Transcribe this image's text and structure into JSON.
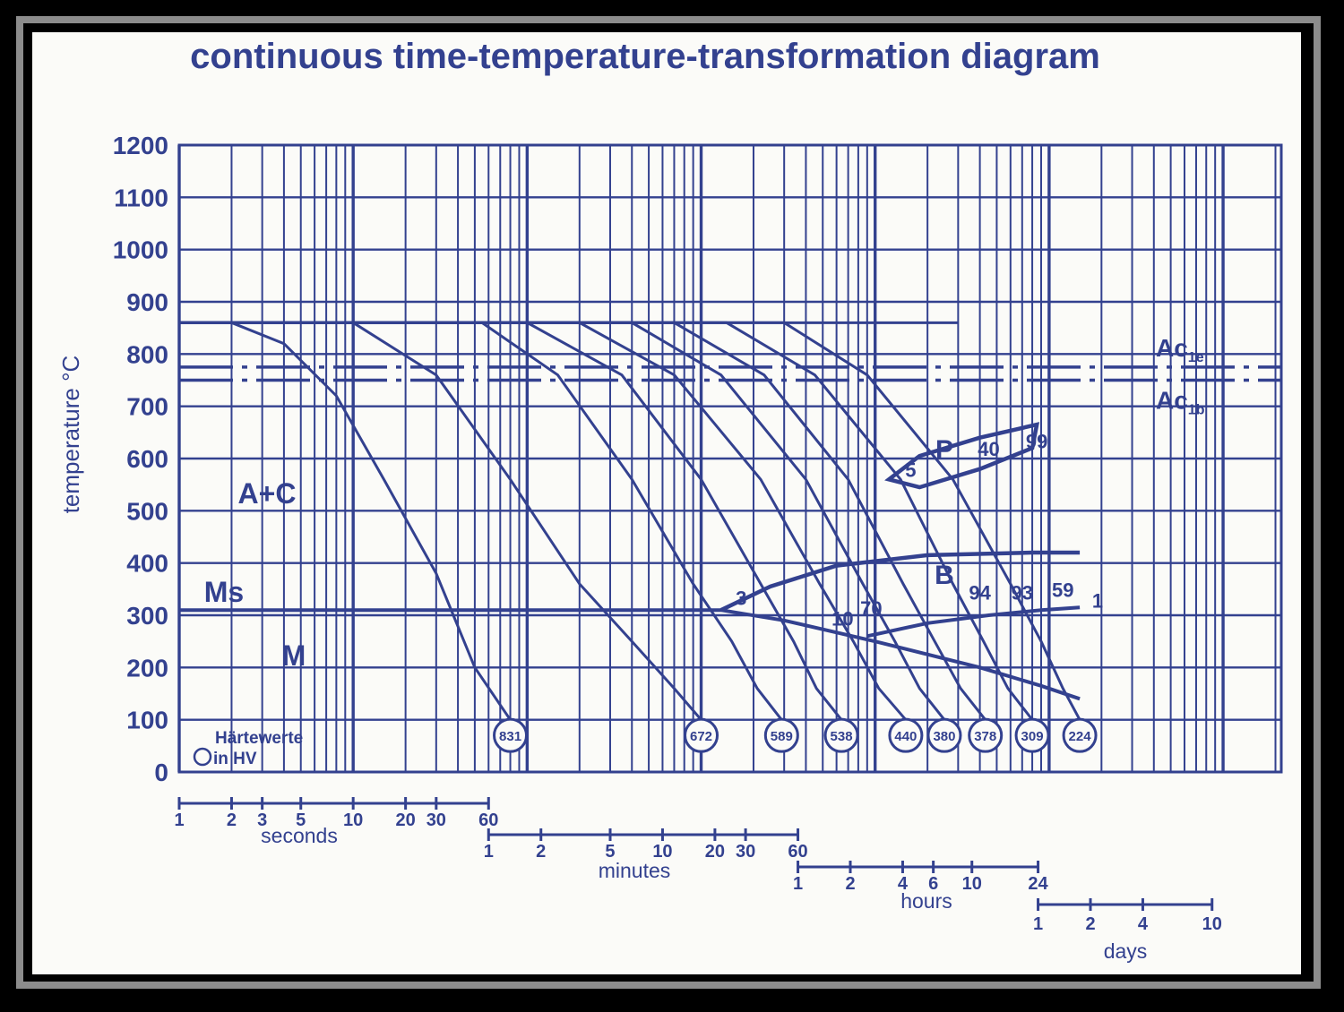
{
  "colors": {
    "ink": "#33418f",
    "paper": "#fbfbf8",
    "border": "#8c8c8c"
  },
  "chart_data": {
    "type": "line",
    "title": "continuous time-temperature-transformation diagram",
    "ylabel": "temperature °C",
    "ylim": [
      0,
      1200
    ],
    "y_ticks": [
      "1200",
      "1100",
      "1000",
      "900",
      "800",
      "700",
      "600",
      "500",
      "400",
      "300",
      "200",
      "100",
      "0"
    ],
    "x_scale": "log",
    "xlim_seconds": [
      1,
      2160000
    ],
    "grid": true,
    "time_scales": [
      {
        "unit": "seconds",
        "tick_labels": [
          "1",
          "2",
          "3",
          "5",
          "10",
          "20",
          "30",
          "60"
        ]
      },
      {
        "unit": "minutes",
        "tick_labels": [
          "1",
          "2",
          "5",
          "10",
          "20",
          "30",
          "60"
        ]
      },
      {
        "unit": "hours",
        "tick_labels": [
          "1",
          "2",
          "4",
          "6",
          "10",
          "24"
        ]
      },
      {
        "unit": "days",
        "tick_labels": [
          "1",
          "2",
          "4",
          "10"
        ]
      }
    ],
    "austenitizing_temperature": 860,
    "critical_lines": [
      {
        "name": "Ac1e",
        "label": "Ac",
        "sub": "1e",
        "value": 775
      },
      {
        "name": "Ac1b",
        "label": "Ac",
        "sub": "1b",
        "value": 750
      }
    ],
    "ms_temperature": 310,
    "region_labels": [
      "A+C",
      "Ms",
      "M",
      "P",
      "B"
    ],
    "hardness_legend": [
      "Härtewerte",
      "in HV"
    ],
    "hardness_values_hv": [
      {
        "value": "831",
        "time_s": 80
      },
      {
        "value": "672",
        "time_s": 1000
      },
      {
        "value": "589",
        "time_s": 2900
      },
      {
        "value": "538",
        "time_s": 6400
      },
      {
        "value": "440",
        "time_s": 15000
      },
      {
        "value": "380",
        "time_s": 25000
      },
      {
        "value": "378",
        "time_s": 43000
      },
      {
        "value": "309",
        "time_s": 80000
      },
      {
        "value": "224",
        "time_s": 150000
      }
    ],
    "pearlite_percentages": [
      "5",
      "40",
      "99"
    ],
    "bainite_percentages": [
      "3",
      "10",
      "70",
      "94",
      "93",
      "59",
      "1"
    ],
    "cooling_curves": [
      {
        "points": [
          [
            1,
            860
          ],
          [
            2,
            860
          ],
          [
            4,
            820
          ],
          [
            8,
            720
          ],
          [
            15,
            560
          ],
          [
            30,
            380
          ],
          [
            50,
            200
          ],
          [
            80,
            100
          ]
        ]
      },
      {
        "points": [
          [
            1,
            860
          ],
          [
            10,
            860
          ],
          [
            30,
            760
          ],
          [
            80,
            560
          ],
          [
            200,
            360
          ],
          [
            400,
            250
          ],
          [
            700,
            160
          ],
          [
            1000,
            100
          ]
        ]
      },
      {
        "points": [
          [
            1,
            860
          ],
          [
            55,
            860
          ],
          [
            150,
            760
          ],
          [
            400,
            560
          ],
          [
            900,
            360
          ],
          [
            1500,
            250
          ],
          [
            2100,
            160
          ],
          [
            2900,
            100
          ]
        ]
      },
      {
        "points": [
          [
            1,
            860
          ],
          [
            100,
            860
          ],
          [
            350,
            760
          ],
          [
            1000,
            560
          ],
          [
            2200,
            360
          ],
          [
            3400,
            250
          ],
          [
            4600,
            160
          ],
          [
            6400,
            100
          ]
        ]
      },
      {
        "points": [
          [
            1,
            860
          ],
          [
            200,
            860
          ],
          [
            700,
            760
          ],
          [
            2200,
            560
          ],
          [
            4800,
            360
          ],
          [
            7500,
            250
          ],
          [
            10500,
            160
          ],
          [
            15000,
            100
          ]
        ]
      },
      {
        "points": [
          [
            1,
            860
          ],
          [
            400,
            860
          ],
          [
            1300,
            760
          ],
          [
            4000,
            560
          ],
          [
            8500,
            360
          ],
          [
            13000,
            250
          ],
          [
            18000,
            160
          ],
          [
            25000,
            100
          ]
        ]
      },
      {
        "points": [
          [
            1,
            860
          ],
          [
            700,
            860
          ],
          [
            2300,
            760
          ],
          [
            7000,
            560
          ],
          [
            14500,
            360
          ],
          [
            22000,
            250
          ],
          [
            31000,
            160
          ],
          [
            43000,
            100
          ]
        ]
      },
      {
        "points": [
          [
            1,
            860
          ],
          [
            1400,
            860
          ],
          [
            4500,
            760
          ],
          [
            14000,
            560
          ],
          [
            28000,
            360
          ],
          [
            42000,
            250
          ],
          [
            58000,
            160
          ],
          [
            80000,
            100
          ]
        ]
      },
      {
        "points": [
          [
            1,
            860
          ],
          [
            3000,
            860
          ],
          [
            9000,
            760
          ],
          [
            28000,
            560
          ],
          [
            60000,
            360
          ],
          [
            90000,
            250
          ],
          [
            120000,
            160
          ],
          [
            150000,
            100
          ]
        ]
      }
    ],
    "ms_line": {
      "points": [
        [
          1,
          310
        ],
        [
          1300,
          310
        ],
        [
          3000,
          290
        ],
        [
          10000,
          250
        ],
        [
          40000,
          200
        ],
        [
          90000,
          165
        ],
        [
          150000,
          140
        ]
      ]
    },
    "bainite_start": {
      "points": [
        [
          1300,
          310
        ],
        [
          2500,
          355
        ],
        [
          6000,
          395
        ],
        [
          20000,
          415
        ],
        [
          80000,
          420
        ],
        [
          150000,
          420
        ]
      ]
    },
    "bainite_end": {
      "points": [
        [
          9000,
          260
        ],
        [
          20000,
          285
        ],
        [
          45000,
          300
        ],
        [
          90000,
          310
        ],
        [
          150000,
          315
        ]
      ]
    },
    "pearlite_region": {
      "points": [
        [
          12000,
          560
        ],
        [
          18000,
          605
        ],
        [
          40000,
          640
        ],
        [
          85000,
          665
        ],
        [
          80000,
          620
        ],
        [
          40000,
          580
        ],
        [
          18000,
          545
        ],
        [
          12000,
          560
        ]
      ]
    }
  }
}
